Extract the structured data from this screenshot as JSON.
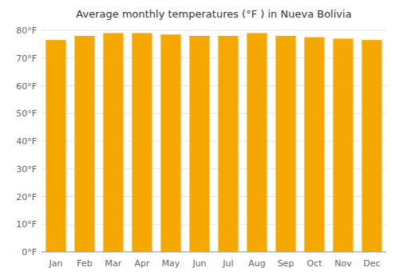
{
  "chart_data": {
    "type": "bar",
    "title": "Average monthly temperatures (°F ) in Nueva Bolivia",
    "categories": [
      "Jan",
      "Feb",
      "Mar",
      "Apr",
      "May",
      "Jun",
      "Jul",
      "Aug",
      "Sep",
      "Oct",
      "Nov",
      "Dec"
    ],
    "values": [
      76.5,
      78.0,
      79.0,
      79.0,
      78.5,
      78.0,
      78.0,
      79.0,
      78.0,
      77.5,
      77.0,
      76.5
    ],
    "color": "#F5A800",
    "ylim": [
      0,
      80
    ],
    "yticks": [
      {
        "value": 0,
        "label": "0°F"
      },
      {
        "value": 10,
        "label": "10°F"
      },
      {
        "value": 20,
        "label": "20°F"
      },
      {
        "value": 30,
        "label": "30°F"
      },
      {
        "value": 40,
        "label": "40°F"
      },
      {
        "value": 50,
        "label": "50°F"
      },
      {
        "value": 60,
        "label": "60°F"
      },
      {
        "value": 70,
        "label": "70°F"
      },
      {
        "value": 80,
        "label": "80°F"
      }
    ],
    "grid": true
  }
}
